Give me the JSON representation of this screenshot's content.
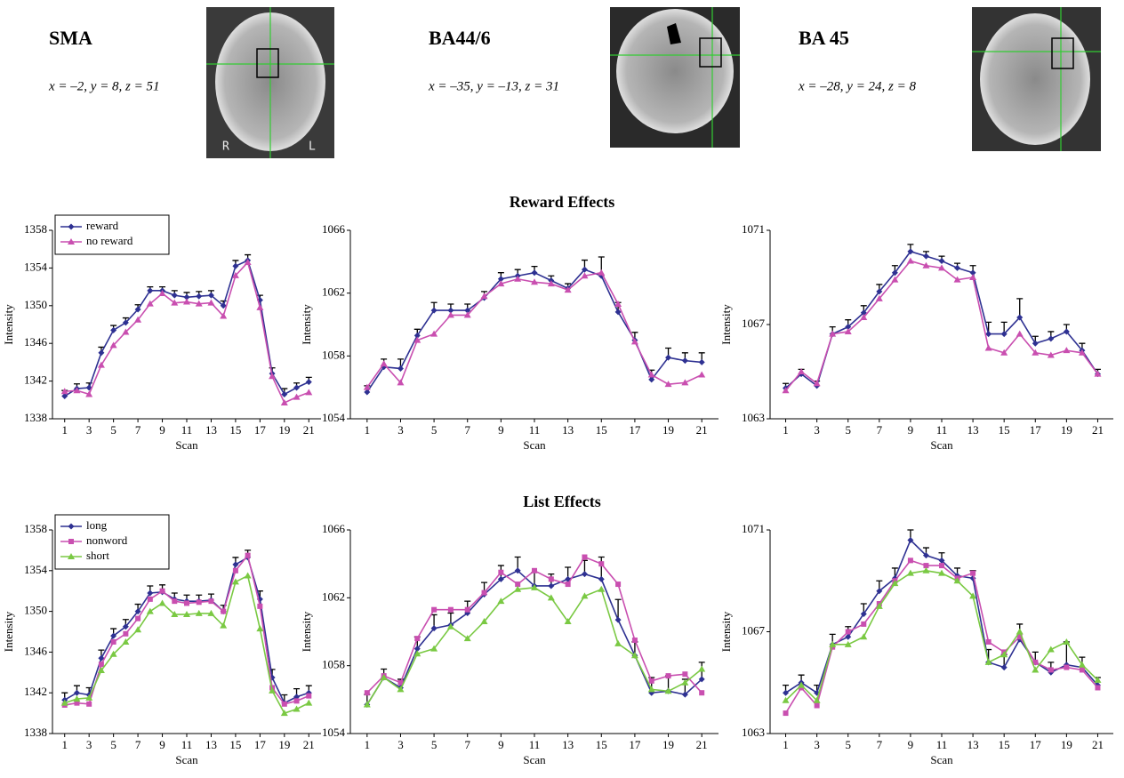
{
  "regions": [
    {
      "label": "SMA",
      "coords": "x = –2, y = 8, z = 51",
      "image_labels": [
        "R",
        "L"
      ]
    },
    {
      "label": "BA44/6",
      "coords": "x = –35, y = –13, z = 31"
    },
    {
      "label": "BA 45",
      "coords": "x = –28, y = 24, z = 8"
    }
  ],
  "chart_data": [
    {
      "type": "line",
      "xlabel": "Scan",
      "ylabel": "Intensity",
      "legend": "upper left",
      "x": [
        1,
        2,
        3,
        4,
        5,
        6,
        7,
        8,
        9,
        10,
        11,
        12,
        13,
        14,
        15,
        16,
        17,
        18,
        19,
        20,
        21
      ],
      "xlim": [
        0,
        22
      ],
      "xticks": [
        1,
        3,
        5,
        7,
        9,
        11,
        13,
        15,
        17,
        19,
        21
      ],
      "ylim": [
        1338,
        1358
      ],
      "yticks": [
        1338,
        1342,
        1346,
        1350,
        1354,
        1358
      ],
      "series": [
        {
          "name": "reward",
          "color": "#2e3192",
          "marker": "diamond",
          "values": [
            1340.4,
            1341.2,
            1341.3,
            1345.0,
            1347.4,
            1348.2,
            1349.6,
            1351.6,
            1351.6,
            1351.1,
            1350.9,
            1351.0,
            1351.1,
            1350.0,
            1354.2,
            1354.8,
            1350.6,
            1342.8,
            1340.6,
            1341.3,
            1341.9
          ],
          "errors": [
            0.6,
            0.5,
            0.5,
            0.6,
            0.5,
            0.5,
            0.5,
            0.4,
            0.4,
            0.5,
            0.5,
            0.5,
            0.5,
            0.5,
            0.6,
            0.6,
            0.5,
            0.6,
            0.6,
            0.5,
            0.5
          ]
        },
        {
          "name": "no reward",
          "color": "#c94fb0",
          "marker": "triangle",
          "values": [
            1340.9,
            1341.0,
            1340.6,
            1343.7,
            1345.8,
            1347.2,
            1348.5,
            1350.2,
            1351.3,
            1350.3,
            1350.4,
            1350.2,
            1350.3,
            1348.9,
            1353.2,
            1354.6,
            1349.8,
            1342.5,
            1339.7,
            1340.3,
            1340.8
          ]
        }
      ]
    },
    {
      "type": "line",
      "title": "Reward Effects",
      "xlabel": "Scan",
      "ylabel": "Intensity",
      "x": [
        1,
        2,
        3,
        4,
        5,
        6,
        7,
        8,
        9,
        10,
        11,
        12,
        13,
        14,
        15,
        16,
        17,
        18,
        19,
        20,
        21
      ],
      "xlim": [
        0,
        22
      ],
      "xticks": [
        1,
        3,
        5,
        7,
        9,
        11,
        13,
        15,
        17,
        19,
        21
      ],
      "ylim": [
        1054,
        1066
      ],
      "yticks": [
        1054,
        1058,
        1062,
        1066
      ],
      "series": [
        {
          "color": "#2e3192",
          "marker": "diamond",
          "values": [
            1055.7,
            1057.3,
            1057.2,
            1059.3,
            1060.9,
            1060.9,
            1060.9,
            1061.7,
            1062.9,
            1063.1,
            1063.3,
            1062.8,
            1062.3,
            1063.5,
            1063.1,
            1060.8,
            1059.0,
            1056.5,
            1057.9,
            1057.7,
            1057.6
          ],
          "errors": [
            0.4,
            0.5,
            0.6,
            0.4,
            0.5,
            0.4,
            0.4,
            0.4,
            0.4,
            0.4,
            0.4,
            0.3,
            0.3,
            0.6,
            1.2,
            0.6,
            0.5,
            0.6,
            0.6,
            0.5,
            0.6
          ]
        },
        {
          "color": "#c94fb0",
          "marker": "triangle",
          "values": [
            1056.0,
            1057.5,
            1056.3,
            1059.0,
            1059.4,
            1060.6,
            1060.6,
            1061.8,
            1062.6,
            1062.9,
            1062.7,
            1062.6,
            1062.2,
            1063.1,
            1063.3,
            1061.3,
            1058.9,
            1056.8,
            1056.2,
            1056.3,
            1056.8
          ]
        }
      ]
    },
    {
      "type": "line",
      "xlabel": "Scan",
      "ylabel": "Intensity",
      "x": [
        1,
        2,
        3,
        4,
        5,
        6,
        7,
        8,
        9,
        10,
        11,
        12,
        13,
        14,
        15,
        16,
        17,
        18,
        19,
        20,
        21
      ],
      "xlim": [
        0,
        22
      ],
      "xticks": [
        1,
        3,
        5,
        7,
        9,
        11,
        13,
        15,
        17,
        19,
        21
      ],
      "ylim": [
        1063,
        1071
      ],
      "yticks": [
        1063,
        1067,
        1071
      ],
      "series": [
        {
          "color": "#2e3192",
          "marker": "diamond",
          "values": [
            1064.3,
            1064.9,
            1064.4,
            1066.6,
            1066.9,
            1067.5,
            1068.4,
            1069.2,
            1070.1,
            1069.9,
            1069.7,
            1069.4,
            1069.2,
            1066.6,
            1066.6,
            1067.3,
            1066.2,
            1066.4,
            1066.7,
            1065.9,
            1064.9
          ],
          "errors": [
            0.2,
            0.2,
            0.2,
            0.3,
            0.3,
            0.3,
            0.3,
            0.3,
            0.3,
            0.2,
            0.2,
            0.2,
            0.3,
            0.5,
            0.5,
            0.8,
            0.3,
            0.3,
            0.3,
            0.3,
            0.2
          ]
        },
        {
          "color": "#c94fb0",
          "marker": "triangle",
          "values": [
            1064.2,
            1065.0,
            1064.5,
            1066.6,
            1066.7,
            1067.3,
            1068.1,
            1068.9,
            1069.7,
            1069.5,
            1069.4,
            1068.9,
            1069.0,
            1066.0,
            1065.8,
            1066.6,
            1065.8,
            1065.7,
            1065.9,
            1065.8,
            1064.9
          ]
        }
      ]
    },
    {
      "type": "line",
      "xlabel": "Scan",
      "ylabel": "Intensity",
      "legend": "upper left",
      "x": [
        1,
        2,
        3,
        4,
        5,
        6,
        7,
        8,
        9,
        10,
        11,
        12,
        13,
        14,
        15,
        16,
        17,
        18,
        19,
        20,
        21
      ],
      "xlim": [
        0,
        22
      ],
      "xticks": [
        1,
        3,
        5,
        7,
        9,
        11,
        13,
        15,
        17,
        19,
        21
      ],
      "ylim": [
        1338,
        1358
      ],
      "yticks": [
        1338,
        1342,
        1346,
        1350,
        1354,
        1358
      ],
      "series": [
        {
          "name": "long",
          "color": "#2e3192",
          "marker": "diamond",
          "values": [
            1341.3,
            1342.0,
            1341.8,
            1345.4,
            1347.6,
            1348.5,
            1350.0,
            1351.8,
            1351.9,
            1351.2,
            1351.0,
            1351.0,
            1351.1,
            1350.0,
            1354.6,
            1355.3,
            1351.2,
            1343.5,
            1341.0,
            1341.6,
            1342.0
          ],
          "errors": [
            0.7,
            0.7,
            0.7,
            0.8,
            0.7,
            0.7,
            0.7,
            0.7,
            0.7,
            0.6,
            0.6,
            0.6,
            0.6,
            0.6,
            0.7,
            0.7,
            0.8,
            0.8,
            0.8,
            0.8,
            0.7
          ]
        },
        {
          "name": "nonword",
          "color": "#c94fb0",
          "marker": "square",
          "values": [
            1340.8,
            1341.0,
            1340.9,
            1344.8,
            1347.0,
            1347.8,
            1349.3,
            1351.2,
            1352.0,
            1351.0,
            1350.8,
            1350.9,
            1351.0,
            1350.0,
            1354.0,
            1355.5,
            1350.5,
            1342.5,
            1340.9,
            1341.2,
            1341.7
          ]
        },
        {
          "name": "short",
          "color": "#7ac943",
          "marker": "triangle",
          "values": [
            1341.0,
            1341.4,
            1341.5,
            1344.2,
            1345.8,
            1347.0,
            1348.2,
            1350.0,
            1350.8,
            1349.7,
            1349.7,
            1349.8,
            1349.8,
            1348.6,
            1352.9,
            1353.5,
            1348.3,
            1342.2,
            1340.0,
            1340.4,
            1341.0
          ]
        }
      ]
    },
    {
      "type": "line",
      "title": "List Effects",
      "xlabel": "Scan",
      "ylabel": "Intensity",
      "x": [
        1,
        2,
        3,
        4,
        5,
        6,
        7,
        8,
        9,
        10,
        11,
        12,
        13,
        14,
        15,
        16,
        17,
        18,
        19,
        20,
        21
      ],
      "xlim": [
        0,
        22
      ],
      "xticks": [
        1,
        3,
        5,
        7,
        9,
        11,
        13,
        15,
        17,
        19,
        21
      ],
      "ylim": [
        1054,
        1066
      ],
      "yticks": [
        1054,
        1058,
        1062,
        1066
      ],
      "series": [
        {
          "color": "#2e3192",
          "marker": "diamond",
          "values": [
            1055.7,
            1057.3,
            1056.7,
            1059.0,
            1060.2,
            1060.4,
            1061.1,
            1062.2,
            1063.1,
            1063.6,
            1062.7,
            1062.7,
            1063.1,
            1063.4,
            1063.1,
            1060.7,
            1058.6,
            1056.4,
            1056.5,
            1056.3,
            1057.2
          ],
          "errors": [
            0.6,
            0.5,
            0.5,
            0.7,
            0.8,
            0.7,
            0.7,
            0.7,
            0.8,
            0.8,
            0.8,
            0.7,
            0.7,
            0.8,
            1.3,
            1.2,
            0.8,
            0.9,
            0.9,
            0.9,
            1.0
          ]
        },
        {
          "color": "#c94fb0",
          "marker": "square",
          "values": [
            1056.4,
            1057.4,
            1057.0,
            1059.6,
            1061.3,
            1061.3,
            1061.3,
            1062.3,
            1063.5,
            1062.8,
            1063.6,
            1063.1,
            1062.8,
            1064.4,
            1064.0,
            1062.8,
            1059.5,
            1057.1,
            1057.4,
            1057.5,
            1056.4
          ]
        },
        {
          "color": "#7ac943",
          "marker": "triangle",
          "values": [
            1055.7,
            1057.3,
            1056.6,
            1058.7,
            1059.0,
            1060.3,
            1059.6,
            1060.6,
            1061.8,
            1062.5,
            1062.6,
            1062.0,
            1060.6,
            1062.1,
            1062.5,
            1059.3,
            1058.6,
            1056.6,
            1056.5,
            1057.0,
            1057.8
          ]
        }
      ]
    },
    {
      "type": "line",
      "xlabel": "Scan",
      "ylabel": "Intensity",
      "x": [
        1,
        2,
        3,
        4,
        5,
        6,
        7,
        8,
        9,
        10,
        11,
        12,
        13,
        14,
        15,
        16,
        17,
        18,
        19,
        20,
        21
      ],
      "xlim": [
        0,
        22
      ],
      "xticks": [
        1,
        3,
        5,
        7,
        9,
        11,
        13,
        15,
        17,
        19,
        21
      ],
      "ylim": [
        1063,
        1071
      ],
      "yticks": [
        1063,
        1067,
        1071
      ],
      "series": [
        {
          "color": "#2e3192",
          "marker": "diamond",
          "values": [
            1064.6,
            1065.0,
            1064.6,
            1066.5,
            1066.8,
            1067.7,
            1068.6,
            1069.1,
            1070.6,
            1070.0,
            1069.8,
            1069.2,
            1069.1,
            1065.8,
            1065.6,
            1066.7,
            1065.8,
            1065.4,
            1065.7,
            1065.6,
            1064.9
          ],
          "errors": [
            0.3,
            0.3,
            0.3,
            0.4,
            0.4,
            0.4,
            0.4,
            0.4,
            0.4,
            0.3,
            0.3,
            0.3,
            0.3,
            0.5,
            0.5,
            0.6,
            0.4,
            0.4,
            0.9,
            0.4,
            0.3
          ]
        },
        {
          "color": "#c94fb0",
          "marker": "square",
          "values": [
            1063.8,
            1064.8,
            1064.1,
            1066.4,
            1067.0,
            1067.3,
            1068.1,
            1069.0,
            1069.8,
            1069.6,
            1069.6,
            1069.1,
            1069.3,
            1066.6,
            1066.2,
            1066.8,
            1065.8,
            1065.5,
            1065.6,
            1065.5,
            1064.8
          ]
        },
        {
          "color": "#7ac943",
          "marker": "triangle",
          "values": [
            1064.3,
            1064.9,
            1064.3,
            1066.5,
            1066.5,
            1066.8,
            1068.0,
            1068.9,
            1069.3,
            1069.4,
            1069.3,
            1069.0,
            1068.4,
            1065.8,
            1066.1,
            1067.0,
            1065.5,
            1066.3,
            1066.6,
            1065.7,
            1065.1
          ]
        }
      ]
    }
  ]
}
